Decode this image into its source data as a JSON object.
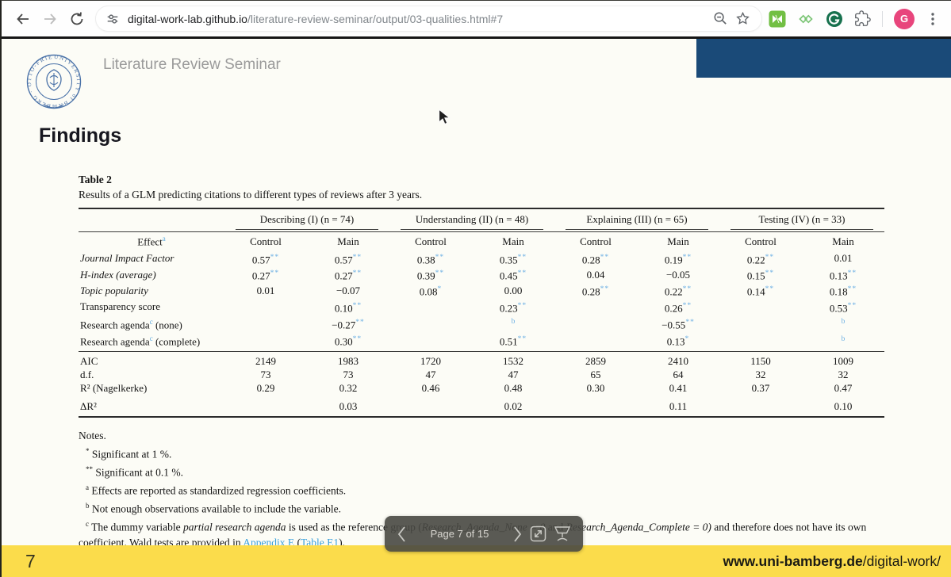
{
  "browser": {
    "url": {
      "host": "digital-work-lab.github.io",
      "path": "/literature-review-seminar/output/03-qualities.html#7"
    },
    "profile_initial": "G"
  },
  "header": {
    "title": "Literature Review Seminar",
    "logo_text": "UNIVERSITY of BAMBERG · OTTO-FRIEDRICH-UNIVERSITÄT"
  },
  "slide": {
    "heading": "Findings",
    "page_number": "7",
    "footer_host": "www.uni-bamberg.de",
    "footer_path": "/digital-work/"
  },
  "pagination": {
    "label": "Page 7 of 15"
  },
  "colors": {
    "header_blue": "#1a4a78",
    "footer_yellow": "#fbdc4b",
    "link_blue": "#3aa0dc",
    "sig_blue": "#6db0e4"
  },
  "table": {
    "title": "Table 2",
    "caption": "Results of a GLM predicting citations to different types of reviews after 3 years.",
    "groups": [
      "Describing (I) (n = 74)",
      "Understanding (II) (n = 48)",
      "Explaining (III) (n = 65)",
      "Testing (IV) (n = 33)"
    ],
    "effect": {
      "label": "Effect",
      "sup": "a"
    },
    "subheaders": [
      "Control",
      "Main",
      "Control",
      "Main",
      "Control",
      "Main",
      "Control",
      "Main"
    ],
    "rows": [
      {
        "label": "Journal Impact Factor",
        "italic": true,
        "cells": [
          {
            "v": "0.57",
            "sig": "**"
          },
          {
            "v": "0.57",
            "sig": "**"
          },
          {
            "v": "0.38",
            "sig": "**"
          },
          {
            "v": "0.35",
            "sig": "**"
          },
          {
            "v": "0.28",
            "sig": "**"
          },
          {
            "v": "0.19",
            "sig": "**"
          },
          {
            "v": "0.22",
            "sig": "**"
          },
          {
            "v": "0.01"
          }
        ]
      },
      {
        "label": "H-index (average)",
        "italic": true,
        "cells": [
          {
            "v": "0.27",
            "sig": "**"
          },
          {
            "v": "0.27",
            "sig": "**"
          },
          {
            "v": "0.39",
            "sig": "**"
          },
          {
            "v": "0.45",
            "sig": "**"
          },
          {
            "v": "0.04"
          },
          {
            "v": "−0.05"
          },
          {
            "v": "0.15",
            "sig": "**"
          },
          {
            "v": "0.13",
            "sig": "**"
          }
        ]
      },
      {
        "label": "Topic popularity",
        "italic": true,
        "cells": [
          {
            "v": "0.01"
          },
          {
            "v": "−0.07"
          },
          {
            "v": "0.08",
            "sig": "*"
          },
          {
            "v": "0.00"
          },
          {
            "v": "0.28",
            "sig": "**"
          },
          {
            "v": "0.22",
            "sig": "**"
          },
          {
            "v": "0.14",
            "sig": "**"
          },
          {
            "v": "0.18",
            "sig": "**"
          }
        ]
      },
      {
        "label": "Transparency score",
        "italic": false,
        "cells": [
          {},
          {
            "v": "0.10",
            "sig": "**"
          },
          {},
          {
            "v": "0.23",
            "sig": "**"
          },
          {},
          {
            "v": "0.26",
            "sig": "**"
          },
          {},
          {
            "v": "0.53",
            "sig": "**"
          }
        ]
      },
      {
        "label": "Research agenda",
        "sup": "c",
        "label_post": " (none)",
        "italic": false,
        "cells": [
          {},
          {
            "v": "−0.27",
            "sig": "**"
          },
          {},
          {
            "flag": "b"
          },
          {},
          {
            "v": "−0.55",
            "sig": "**"
          },
          {},
          {
            "flag": "b"
          }
        ]
      },
      {
        "label": "Research agenda",
        "sup": "c",
        "label_post": " (complete)",
        "italic": false,
        "cells": [
          {},
          {
            "v": "0.30",
            "sig": "**"
          },
          {},
          {
            "v": "0.51",
            "sig": "**"
          },
          {},
          {
            "v": "0.13",
            "sig": "*"
          },
          {},
          {
            "flag": "b"
          }
        ]
      }
    ],
    "stats": [
      {
        "label": "AIC",
        "cells": [
          "2149",
          "1983",
          "1720",
          "1532",
          "2859",
          "2410",
          "1150",
          "1009"
        ]
      },
      {
        "label": "d.f.",
        "cells": [
          "73",
          "73",
          "47",
          "47",
          "65",
          "64",
          "32",
          "32"
        ]
      },
      {
        "label": "R² (Nagelkerke)",
        "cells": [
          "0.29",
          "0.32",
          "0.46",
          "0.48",
          "0.30",
          "0.41",
          "0.37",
          "0.47"
        ]
      },
      {
        "label": "ΔR²",
        "spaced": true,
        "cells": [
          "",
          "0.03",
          "",
          "0.02",
          "",
          "0.11",
          "",
          "0.10"
        ]
      }
    ],
    "notes": {
      "title": "Notes.",
      "items": [
        {
          "marker": "*",
          "segments": [
            {
              "t": "Significant at 1 %."
            }
          ]
        },
        {
          "marker": "**",
          "segments": [
            {
              "t": "Significant at 0.1 %."
            }
          ]
        },
        {
          "marker": "a",
          "segments": [
            {
              "t": "Effects are reported as standardized regression coefficients."
            }
          ]
        },
        {
          "marker": "b",
          "segments": [
            {
              "t": "Not enough observations available to include the variable."
            }
          ]
        },
        {
          "marker": "c",
          "segments": [
            {
              "t": "The dummy variable "
            },
            {
              "t": "partial research agenda",
              "i": true
            },
            {
              "t": " is used as the reference group ("
            },
            {
              "t": "Research_Agenda_None = 0",
              "i": true
            },
            {
              "t": " and "
            },
            {
              "t": "Research_Agenda_Complete = 0)",
              "i": true
            },
            {
              "t": " and therefore does not have its own coefficient. Wald tests are provided in "
            },
            {
              "t": "Appendix E",
              "link": true
            },
            {
              "t": " ("
            },
            {
              "t": "Table E1",
              "link": true
            },
            {
              "t": ")."
            }
          ]
        }
      ]
    }
  }
}
